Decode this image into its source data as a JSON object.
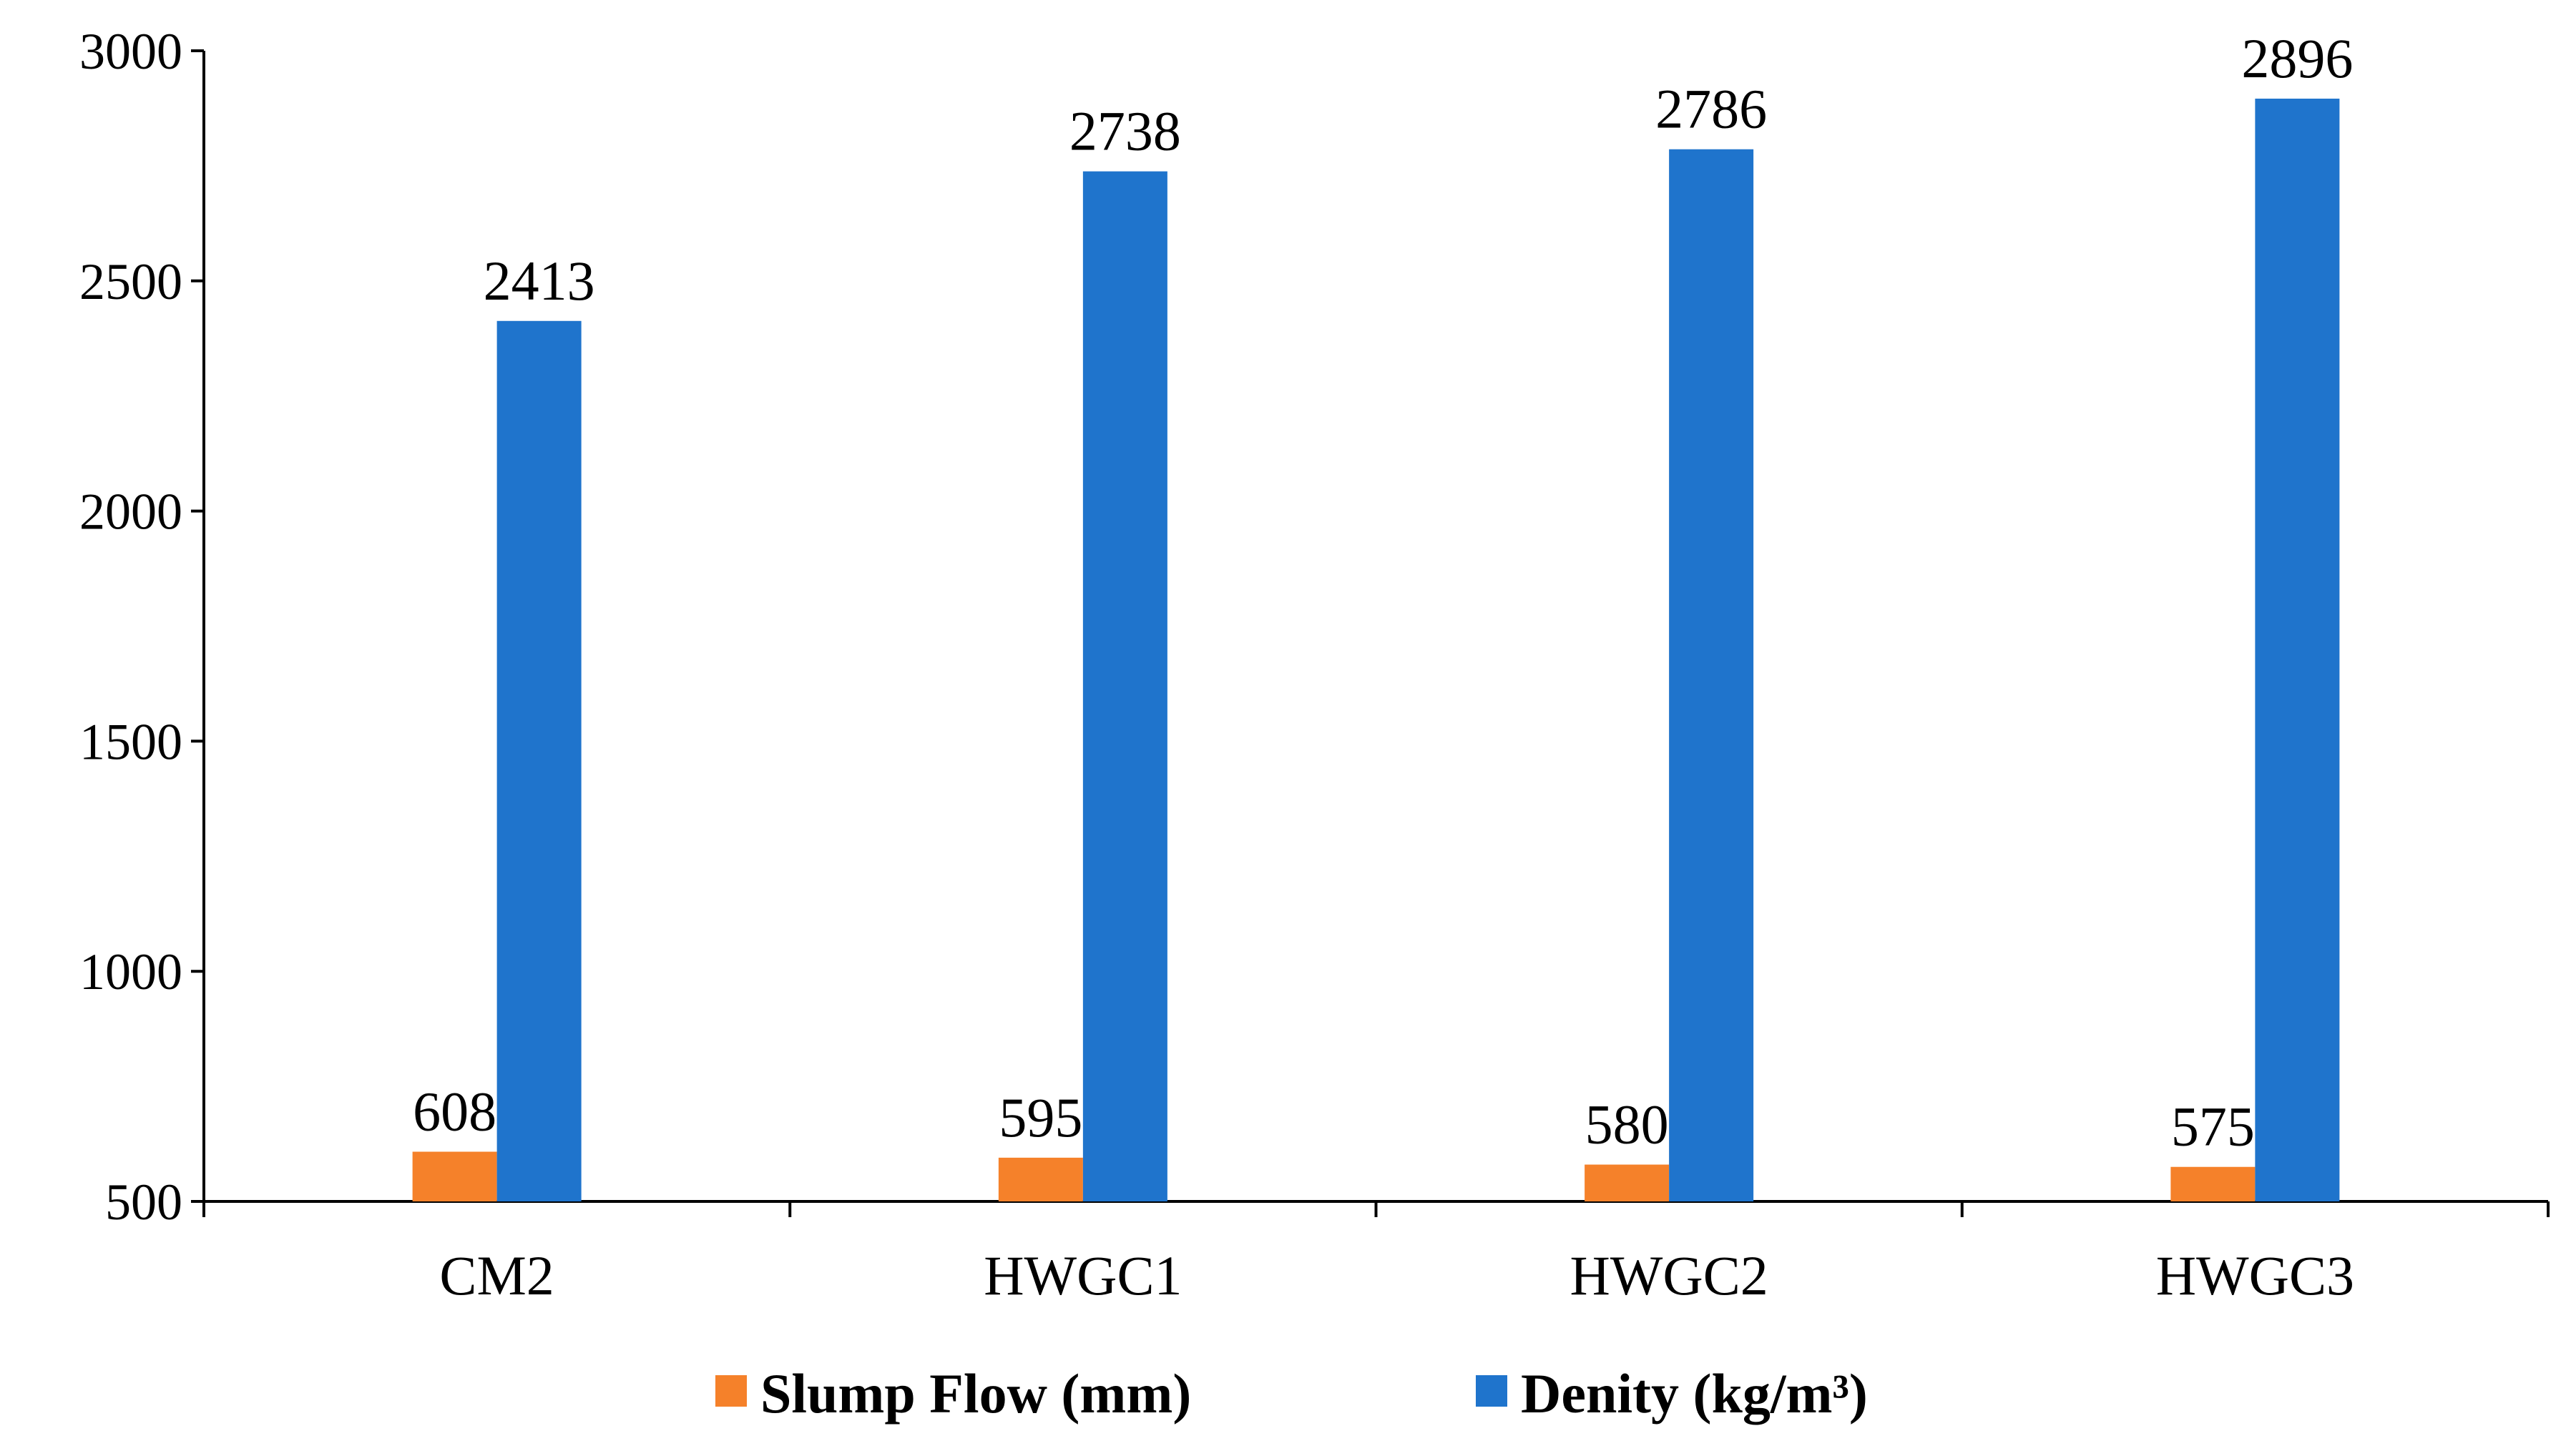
{
  "chart_data": {
    "type": "bar",
    "title": "",
    "xlabel": "",
    "ylabel": "",
    "categories": [
      "CM2",
      "HWGC1",
      "HWGC2",
      "HWGC3"
    ],
    "series": [
      {
        "name": "Slump Flow (mm)",
        "color": "#F5812A",
        "values": [
          608,
          595,
          580,
          575
        ],
        "labels": [
          "608",
          "595",
          "580",
          "575"
        ]
      },
      {
        "name": "Denity (kg/m³)",
        "color": "#1F74CC",
        "values": [
          2413,
          2738,
          2786,
          2896
        ],
        "labels": [
          "2413",
          "2738",
          "2786",
          "2896"
        ]
      }
    ],
    "ylim": [
      500,
      3000
    ],
    "yticks": [
      500,
      1000,
      1500,
      2000,
      2500,
      3000
    ],
    "ytick_labels": [
      "500",
      "1000",
      "1500",
      "2000",
      "2500",
      "3000"
    ],
    "grid": false,
    "legend_position": "bottom-center"
  }
}
